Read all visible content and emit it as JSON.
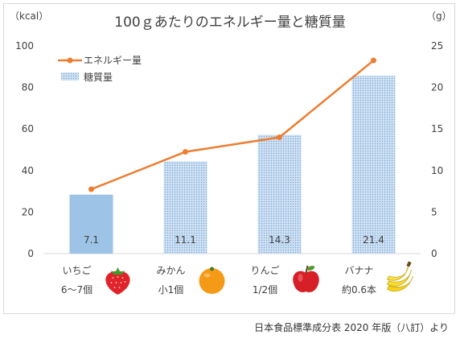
{
  "chart_data": {
    "type": "bar",
    "title": "100ｇあたりのエネルギー量と糖質量",
    "left_axis_unit": "（kcal）",
    "right_axis_unit": "（g）",
    "left_axis_ticks": [
      "0",
      "20",
      "40",
      "60",
      "80",
      "100"
    ],
    "right_axis_ticks": [
      "0",
      "5",
      "10",
      "15",
      "20",
      "25"
    ],
    "ylim_left": [
      0,
      100
    ],
    "ylim_right": [
      0,
      25
    ],
    "categories": [
      {
        "name": "いちご",
        "amount": "6～7個",
        "icon": "strawberry-icon"
      },
      {
        "name": "みかん",
        "amount": "小1個",
        "icon": "orange-icon"
      },
      {
        "name": "りんご",
        "amount": "1/2個",
        "icon": "apple-icon"
      },
      {
        "name": "バナナ",
        "amount": "約0.6本",
        "icon": "banana-icon"
      }
    ],
    "series": [
      {
        "name": "エネルギー量",
        "type": "line",
        "axis": "left",
        "color": "#ed7d31",
        "values": [
          31,
          49,
          56,
          93
        ]
      },
      {
        "name": "糖質量",
        "type": "bar",
        "axis": "right",
        "color": "#9dc3e6",
        "values": [
          7.1,
          11.1,
          14.3,
          21.4
        ],
        "labels": [
          "7.1",
          "11.1",
          "14.3",
          "21.4"
        ]
      }
    ],
    "grid": false,
    "legend_position": "top-left"
  },
  "source_note": "日本食品標準成分表 2020 年版（八訂）より"
}
